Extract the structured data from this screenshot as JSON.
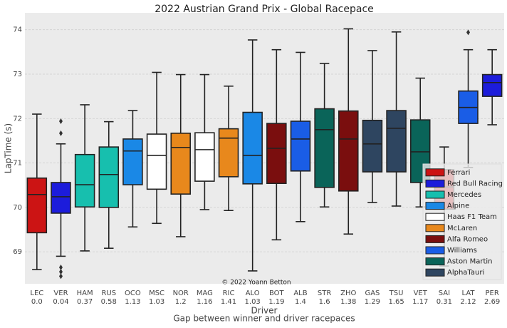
{
  "chart_data": {
    "type": "box",
    "title": "2022 Austrian Grand Prix - Global Racepace",
    "xlabel": "Driver",
    "xlabel_sub": "Gap between winner and driver racepaces",
    "ylabel": "LapTime (s)",
    "annotation": "© 2022 Yoann Betton",
    "categories": [
      "LEC",
      "VER",
      "HAM",
      "RUS",
      "OCO",
      "MSC",
      "NOR",
      "MAG",
      "RIC",
      "ALO",
      "BOT",
      "ALB",
      "STR",
      "ZHO",
      "GAS",
      "TSU",
      "VET",
      "SAI",
      "LAT",
      "PER"
    ],
    "gaps": [
      {
        "value": 0,
        "label": "0.0"
      },
      0.04,
      0.37,
      0.58,
      1.13,
      1.03,
      1.2,
      1.16,
      1.41,
      1.03,
      1.19,
      1.4,
      1.6,
      1.38,
      1.29,
      1.65,
      1.17,
      0.31,
      2.12,
      2.69
    ],
    "ylim": [
      68.28,
      74.38
    ],
    "yticks": [
      69,
      70,
      71,
      72,
      73,
      74
    ],
    "grid": true,
    "legend": "lower right",
    "series": [
      {
        "name": "Ferrari",
        "color": "#cc1414",
        "boxes": [
          {
            "low": 68.6,
            "q1": 69.43,
            "median": 70.29,
            "q3": 70.66,
            "high": 72.1,
            "fliers": []
          },
          null,
          null,
          null,
          null,
          null,
          null,
          null,
          null,
          null,
          null,
          null,
          null,
          null,
          null,
          null,
          null,
          {
            "low": 68.68,
            "q1": 69.96,
            "median": 70.46,
            "q3": 70.85,
            "high": 71.36,
            "fliers": []
          },
          null,
          null
        ]
      },
      {
        "name": "Red Bull Racing",
        "color": "#1c1cdb",
        "boxes": [
          null,
          {
            "low": 68.9,
            "q1": 69.87,
            "median": 70.24,
            "q3": 70.56,
            "high": 71.43,
            "fliers": [
              71.94,
              71.67,
              68.65,
              68.55,
              68.45
            ]
          },
          null,
          null,
          null,
          null,
          null,
          null,
          null,
          null,
          null,
          null,
          null,
          null,
          null,
          null,
          null,
          null,
          null,
          {
            "low": 71.86,
            "q1": 72.5,
            "median": 72.81,
            "q3": 72.99,
            "high": 73.55,
            "fliers": []
          }
        ]
      },
      {
        "name": "Mercedes",
        "color": "#17bfae",
        "boxes": [
          null,
          null,
          {
            "low": 69.02,
            "q1": 70.01,
            "median": 70.51,
            "q3": 71.19,
            "high": 72.31,
            "fliers": []
          },
          {
            "low": 69.08,
            "q1": 70.0,
            "median": 70.74,
            "q3": 71.36,
            "high": 71.93,
            "fliers": []
          },
          null,
          null,
          null,
          null,
          null,
          null,
          null,
          null,
          null,
          null,
          null,
          null,
          null,
          null,
          null,
          null
        ]
      },
      {
        "name": "Alpine",
        "color": "#1a88e6",
        "boxes": [
          null,
          null,
          null,
          null,
          {
            "low": 69.56,
            "q1": 70.51,
            "median": 71.27,
            "q3": 71.54,
            "high": 72.18,
            "fliers": []
          },
          null,
          null,
          null,
          null,
          {
            "low": 68.57,
            "q1": 70.53,
            "median": 71.17,
            "q3": 72.14,
            "high": 73.77,
            "fliers": []
          },
          null,
          null,
          null,
          null,
          null,
          null,
          null,
          null,
          null,
          null
        ]
      },
      {
        "name": "Haas F1 Team",
        "color": "#ffffff",
        "boxes": [
          null,
          null,
          null,
          null,
          null,
          {
            "low": 69.64,
            "q1": 70.41,
            "median": 71.17,
            "q3": 71.65,
            "high": 73.04,
            "fliers": []
          },
          null,
          {
            "low": 69.95,
            "q1": 70.59,
            "median": 71.3,
            "q3": 71.68,
            "high": 72.99,
            "fliers": []
          },
          null,
          null,
          null,
          null,
          null,
          null,
          null,
          null,
          null,
          null,
          null,
          null
        ]
      },
      {
        "name": "McLaren",
        "color": "#e8881c",
        "boxes": [
          null,
          null,
          null,
          null,
          null,
          null,
          {
            "low": 69.34,
            "q1": 70.3,
            "median": 71.35,
            "q3": 71.67,
            "high": 72.99,
            "fliers": []
          },
          null,
          {
            "low": 69.93,
            "q1": 70.69,
            "median": 71.56,
            "q3": 71.77,
            "high": 72.73,
            "fliers": []
          },
          null,
          null,
          null,
          null,
          null,
          null,
          null,
          null,
          null,
          null,
          null
        ]
      },
      {
        "name": "Alfa Romeo",
        "color": "#7a0e0e",
        "boxes": [
          null,
          null,
          null,
          null,
          null,
          null,
          null,
          null,
          null,
          null,
          {
            "low": 69.27,
            "q1": 70.54,
            "median": 71.33,
            "q3": 71.89,
            "high": 73.55,
            "fliers": []
          },
          null,
          null,
          {
            "low": 69.4,
            "q1": 70.37,
            "median": 71.54,
            "q3": 72.17,
            "high": 74.02,
            "fliers": []
          },
          null,
          null,
          null,
          null,
          null,
          null
        ]
      },
      {
        "name": "Williams",
        "color": "#1a5de6",
        "boxes": [
          null,
          null,
          null,
          null,
          null,
          null,
          null,
          null,
          null,
          null,
          null,
          {
            "low": 69.68,
            "q1": 70.82,
            "median": 71.54,
            "q3": 71.94,
            "high": 73.49,
            "fliers": []
          },
          null,
          null,
          null,
          null,
          null,
          null,
          {
            "low": 70.9,
            "q1": 71.89,
            "median": 72.25,
            "q3": 72.62,
            "high": 73.55,
            "fliers": [
              73.94
            ]
          },
          null
        ]
      },
      {
        "name": "Aston Martin",
        "color": "#0a6459",
        "boxes": [
          null,
          null,
          null,
          null,
          null,
          null,
          null,
          null,
          null,
          null,
          null,
          null,
          {
            "low": 70.01,
            "q1": 70.45,
            "median": 71.75,
            "q3": 72.22,
            "high": 73.24,
            "fliers": []
          },
          null,
          null,
          null,
          {
            "low": 70.01,
            "q1": 70.56,
            "median": 71.25,
            "q3": 71.97,
            "high": 72.91,
            "fliers": []
          },
          null,
          null,
          null
        ]
      },
      {
        "name": "AlphaTauri",
        "color": "#2e4560",
        "boxes": [
          null,
          null,
          null,
          null,
          null,
          null,
          null,
          null,
          null,
          null,
          null,
          null,
          null,
          null,
          {
            "low": 70.11,
            "q1": 70.8,
            "median": 71.43,
            "q3": 71.96,
            "high": 73.53,
            "fliers": []
          },
          {
            "low": 70.03,
            "q1": 70.8,
            "median": 71.78,
            "q3": 72.18,
            "high": 73.95,
            "fliers": []
          },
          null,
          null,
          null,
          null
        ]
      }
    ]
  }
}
